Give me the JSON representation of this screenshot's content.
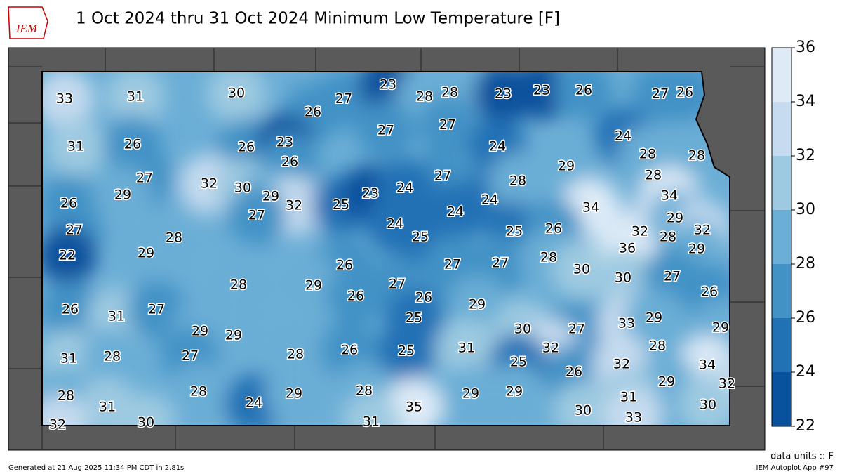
{
  "title": "1 Oct 2024 thru 31 Oct 2024 Minimum Low Temperature [F]",
  "logo": "IEM",
  "units": "data units :: F",
  "footer_left": "Generated at 21 Aug 2025 11:34 PM CDT in 2.81s",
  "footer_right": "IEM Autoplot App #97",
  "colorbar": {
    "ticks": [
      22,
      24,
      26,
      28,
      30,
      32,
      34,
      36
    ],
    "colors": [
      "#08519c",
      "#2171b5",
      "#4292c6",
      "#6baed6",
      "#9ecae1",
      "#c6dbef",
      "#deebf7"
    ]
  },
  "stations": [
    33,
    31,
    30,
    27,
    23,
    28,
    28,
    23,
    23,
    26,
    27,
    26,
    26,
    27,
    27,
    24,
    31,
    26,
    26,
    23,
    26,
    24,
    28,
    28,
    29,
    27,
    28,
    27,
    32,
    30,
    29,
    32,
    25,
    23,
    24,
    24,
    28,
    34,
    26,
    29,
    34,
    24,
    29,
    27,
    27,
    24,
    25,
    25,
    26,
    32,
    28,
    32,
    22,
    29,
    28,
    26,
    27,
    27,
    28,
    30,
    36,
    29,
    28,
    29,
    27,
    30,
    27,
    26,
    26,
    31,
    27,
    26,
    26,
    29,
    29,
    29,
    25,
    30,
    27,
    33,
    29,
    29,
    31,
    28,
    27,
    28,
    26,
    25,
    31,
    32,
    28,
    25,
    26,
    32,
    34,
    28,
    31,
    28,
    24,
    29,
    28,
    35,
    29,
    29,
    29,
    32,
    32,
    30,
    31,
    30,
    31,
    30,
    33
  ]
}
